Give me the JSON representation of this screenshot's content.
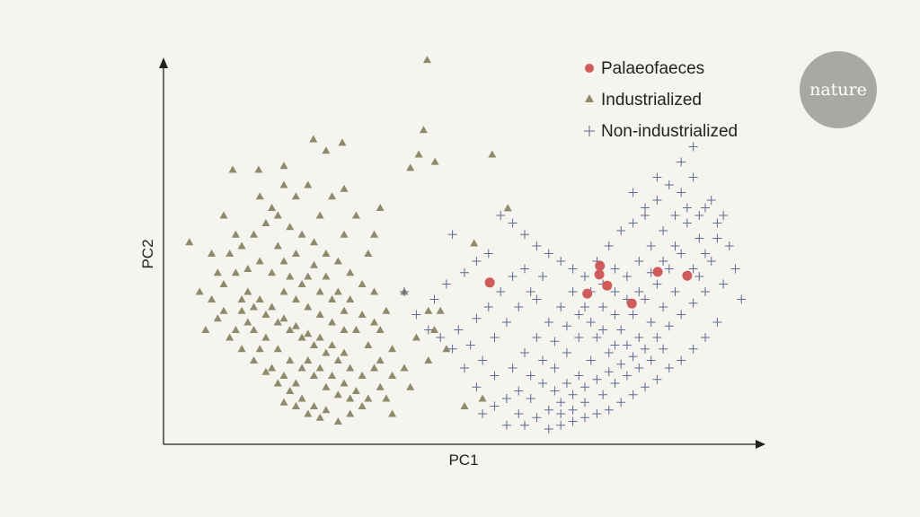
{
  "chart_data": {
    "type": "scatter",
    "title": "",
    "xlabel": "PC1",
    "ylabel": "PC2",
    "xlim": [
      0,
      100
    ],
    "ylim": [
      0,
      100
    ],
    "grid": false,
    "legend_position": "top-right",
    "colors": {
      "Palaeofaeces": "#cf5b5b",
      "Industrialized": "#8e8a6c",
      "Non-industrialized": "#5e6a92",
      "axis": "#222222",
      "background": "#f5f4ee",
      "logo": "#aaa8a2"
    },
    "series": [
      {
        "name": "Industrialized",
        "marker": "triangle",
        "points": [
          [
            43.8,
            100.8
          ],
          [
            43.2,
            82.4
          ],
          [
            42.4,
            76
          ],
          [
            41,
            72.5
          ],
          [
            45.1,
            74.1
          ],
          [
            54.6,
            76
          ],
          [
            57.2,
            61.9
          ],
          [
            51.6,
            52.7
          ],
          [
            24.9,
            80
          ],
          [
            29.7,
            79.1
          ],
          [
            11.5,
            72
          ],
          [
            15.8,
            72
          ],
          [
            4.3,
            53
          ],
          [
            20,
            73
          ],
          [
            27,
            77
          ],
          [
            36,
            62
          ],
          [
            40,
            40
          ],
          [
            44,
            35
          ],
          [
            47,
            25
          ],
          [
            50,
            10
          ],
          [
            53,
            12
          ],
          [
            38,
            8
          ],
          [
            41,
            15
          ],
          [
            12,
            45
          ],
          [
            14,
            40
          ],
          [
            16,
            38
          ],
          [
            18,
            36
          ],
          [
            20,
            33
          ],
          [
            22,
            31
          ],
          [
            24,
            29
          ],
          [
            26,
            28
          ],
          [
            28,
            26
          ],
          [
            30,
            24
          ],
          [
            13,
            35
          ],
          [
            15,
            30
          ],
          [
            17,
            28
          ],
          [
            19,
            25
          ],
          [
            21,
            22
          ],
          [
            23,
            20
          ],
          [
            25,
            18
          ],
          [
            27,
            15
          ],
          [
            29,
            13
          ],
          [
            31,
            12
          ],
          [
            33,
            10
          ],
          [
            10,
            42
          ],
          [
            8,
            38
          ],
          [
            6,
            40
          ],
          [
            7,
            30
          ],
          [
            9,
            33
          ],
          [
            11,
            28
          ],
          [
            13,
            25
          ],
          [
            15,
            22
          ],
          [
            17,
            19
          ],
          [
            19,
            16
          ],
          [
            21,
            14
          ],
          [
            23,
            12
          ],
          [
            25,
            10
          ],
          [
            27,
            9
          ],
          [
            18,
            45
          ],
          [
            20,
            48
          ],
          [
            22,
            50
          ],
          [
            24,
            44
          ],
          [
            26,
            40
          ],
          [
            28,
            38
          ],
          [
            30,
            35
          ],
          [
            32,
            30
          ],
          [
            34,
            26
          ],
          [
            36,
            22
          ],
          [
            38,
            18
          ],
          [
            35,
            20
          ],
          [
            33,
            18
          ],
          [
            31,
            20
          ],
          [
            29,
            22
          ],
          [
            27,
            24
          ],
          [
            25,
            26
          ],
          [
            23,
            28
          ],
          [
            21,
            30
          ],
          [
            19,
            32
          ],
          [
            17,
            34
          ],
          [
            15,
            36
          ],
          [
            13,
            38
          ],
          [
            11,
            50
          ],
          [
            13,
            52
          ],
          [
            15,
            55
          ],
          [
            17,
            58
          ],
          [
            19,
            60
          ],
          [
            21,
            57
          ],
          [
            23,
            55
          ],
          [
            25,
            53
          ],
          [
            27,
            50
          ],
          [
            29,
            48
          ],
          [
            31,
            45
          ],
          [
            33,
            42
          ],
          [
            35,
            40
          ],
          [
            16,
            48
          ],
          [
            14,
            46
          ],
          [
            12,
            55
          ],
          [
            10,
            60
          ],
          [
            18,
            62
          ],
          [
            22,
            65
          ],
          [
            26,
            60
          ],
          [
            30,
            55
          ],
          [
            34,
            50
          ],
          [
            20,
            40
          ],
          [
            22,
            38
          ],
          [
            24,
            36
          ],
          [
            26,
            34
          ],
          [
            28,
            32
          ],
          [
            30,
            30
          ],
          [
            18,
            20
          ],
          [
            20,
            18
          ],
          [
            22,
            16
          ],
          [
            24,
            22
          ],
          [
            26,
            20
          ],
          [
            28,
            18
          ],
          [
            30,
            16
          ],
          [
            32,
            14
          ],
          [
            34,
            12
          ],
          [
            16,
            25
          ],
          [
            14,
            32
          ],
          [
            12,
            30
          ],
          [
            10,
            35
          ],
          [
            9,
            45
          ],
          [
            8,
            50
          ],
          [
            36,
            30
          ],
          [
            37,
            35
          ],
          [
            38,
            25
          ],
          [
            40,
            20
          ],
          [
            42,
            28
          ],
          [
            45,
            30
          ],
          [
            46,
            35
          ],
          [
            44,
            22
          ],
          [
            19,
            52
          ],
          [
            21,
            44
          ],
          [
            23,
            42
          ],
          [
            25,
            47
          ],
          [
            27,
            44
          ],
          [
            29,
            40
          ],
          [
            31,
            38
          ],
          [
            33,
            34
          ],
          [
            35,
            32
          ],
          [
            28,
            65
          ],
          [
            32,
            60
          ],
          [
            35,
            55
          ],
          [
            30,
            67
          ],
          [
            24,
            68
          ],
          [
            20,
            68
          ],
          [
            16,
            65
          ],
          [
            37,
            12
          ],
          [
            36,
            15
          ],
          [
            31,
            8
          ],
          [
            29,
            6
          ],
          [
            26,
            7
          ],
          [
            24,
            8
          ],
          [
            22,
            10
          ],
          [
            20,
            11
          ]
        ]
      },
      {
        "name": "Non-industrialized",
        "marker": "plus",
        "points": [
          [
            40,
            40
          ],
          [
            42,
            34
          ],
          [
            45,
            38
          ],
          [
            47,
            42
          ],
          [
            50,
            45
          ],
          [
            52,
            48
          ],
          [
            48,
            55
          ],
          [
            54,
            50
          ],
          [
            56,
            60
          ],
          [
            58,
            58
          ],
          [
            60,
            55
          ],
          [
            62,
            52
          ],
          [
            64,
            50
          ],
          [
            66,
            48
          ],
          [
            68,
            46
          ],
          [
            70,
            44
          ],
          [
            72,
            48
          ],
          [
            74,
            52
          ],
          [
            76,
            56
          ],
          [
            78,
            58
          ],
          [
            80,
            62
          ],
          [
            82,
            64
          ],
          [
            84,
            68
          ],
          [
            86,
            66
          ],
          [
            88,
            70
          ],
          [
            90,
            62
          ],
          [
            92,
            58
          ],
          [
            94,
            52
          ],
          [
            95,
            46
          ],
          [
            96,
            38
          ],
          [
            93,
            42
          ],
          [
            91,
            48
          ],
          [
            89,
            54
          ],
          [
            87,
            58
          ],
          [
            85,
            60
          ],
          [
            83,
            56
          ],
          [
            81,
            52
          ],
          [
            79,
            48
          ],
          [
            77,
            44
          ],
          [
            75,
            40
          ],
          [
            73,
            36
          ],
          [
            71,
            32
          ],
          [
            69,
            28
          ],
          [
            67,
            24
          ],
          [
            65,
            20
          ],
          [
            63,
            16
          ],
          [
            61,
            12
          ],
          [
            59,
            8
          ],
          [
            57,
            5
          ],
          [
            60,
            5
          ],
          [
            62,
            7
          ],
          [
            64,
            9
          ],
          [
            66,
            11
          ],
          [
            68,
            13
          ],
          [
            70,
            15
          ],
          [
            72,
            17
          ],
          [
            74,
            19
          ],
          [
            76,
            21
          ],
          [
            78,
            23
          ],
          [
            80,
            25
          ],
          [
            82,
            28
          ],
          [
            84,
            31
          ],
          [
            86,
            34
          ],
          [
            88,
            37
          ],
          [
            90,
            40
          ],
          [
            92,
            32
          ],
          [
            90,
            28
          ],
          [
            88,
            25
          ],
          [
            86,
            22
          ],
          [
            84,
            20
          ],
          [
            82,
            17
          ],
          [
            80,
            15
          ],
          [
            78,
            13
          ],
          [
            76,
            11
          ],
          [
            74,
            9
          ],
          [
            72,
            8
          ],
          [
            70,
            7
          ],
          [
            68,
            6
          ],
          [
            66,
            5
          ],
          [
            64,
            4
          ],
          [
            55,
            18
          ],
          [
            53,
            22
          ],
          [
            51,
            26
          ],
          [
            49,
            30
          ],
          [
            55,
            28
          ],
          [
            57,
            32
          ],
          [
            59,
            36
          ],
          [
            61,
            40
          ],
          [
            63,
            44
          ],
          [
            58,
            20
          ],
          [
            60,
            24
          ],
          [
            62,
            28
          ],
          [
            64,
            32
          ],
          [
            66,
            36
          ],
          [
            68,
            40
          ],
          [
            70,
            36
          ],
          [
            72,
            28
          ],
          [
            74,
            24
          ],
          [
            76,
            30
          ],
          [
            78,
            34
          ],
          [
            80,
            38
          ],
          [
            82,
            42
          ],
          [
            84,
            46
          ],
          [
            86,
            50
          ],
          [
            88,
            46
          ],
          [
            90,
            50
          ],
          [
            92,
            54
          ],
          [
            85,
            40
          ],
          [
            87,
            44
          ],
          [
            89,
            44
          ],
          [
            83,
            36
          ],
          [
            81,
            32
          ],
          [
            79,
            28
          ],
          [
            77,
            26
          ],
          [
            75,
            34
          ],
          [
            73,
            42
          ],
          [
            71,
            22
          ],
          [
            69,
            18
          ],
          [
            67,
            16
          ],
          [
            65,
            14
          ],
          [
            63,
            22
          ],
          [
            61,
            18
          ],
          [
            59,
            14
          ],
          [
            57,
            12
          ],
          [
            55,
            10
          ],
          [
            53,
            8
          ],
          [
            52,
            15
          ],
          [
            50,
            20
          ],
          [
            48,
            25
          ],
          [
            46,
            28
          ],
          [
            44,
            30
          ],
          [
            62,
            38
          ],
          [
            60,
            46
          ],
          [
            58,
            44
          ],
          [
            56,
            40
          ],
          [
            54,
            36
          ],
          [
            52,
            33
          ],
          [
            87,
            62
          ],
          [
            85,
            52
          ],
          [
            83,
            48
          ],
          [
            81,
            45
          ],
          [
            79,
            40
          ],
          [
            77,
            38
          ],
          [
            75,
            46
          ],
          [
            89,
            60
          ],
          [
            91,
            64
          ],
          [
            93,
            60
          ],
          [
            86,
            74
          ],
          [
            88,
            78
          ],
          [
            80,
            60
          ],
          [
            82,
            70
          ],
          [
            78,
            66
          ],
          [
            67,
            31
          ],
          [
            65,
            27
          ],
          [
            69,
            34
          ],
          [
            71,
            40
          ],
          [
            73,
            30
          ],
          [
            75,
            26
          ],
          [
            77,
            18
          ],
          [
            79,
            20
          ],
          [
            81,
            22
          ],
          [
            83,
            25
          ],
          [
            70,
            11
          ],
          [
            68,
            9
          ],
          [
            66,
            8
          ],
          [
            73,
            13
          ],
          [
            75,
            16
          ]
        ]
      },
      {
        "name": "Palaeofaeces",
        "marker": "circle",
        "points": [
          [
            54.2,
            42.4
          ],
          [
            72.5,
            46.8
          ],
          [
            72.4,
            44.5
          ],
          [
            73.7,
            41.6
          ],
          [
            70.4,
            39.5
          ],
          [
            77.8,
            36.9
          ],
          [
            82.1,
            45.2
          ],
          [
            87.0,
            44.2
          ]
        ]
      }
    ],
    "legend": [
      "Palaeofaeces",
      "Industrialized",
      "Non-industrialized"
    ]
  },
  "logo": {
    "text": "nature"
  }
}
